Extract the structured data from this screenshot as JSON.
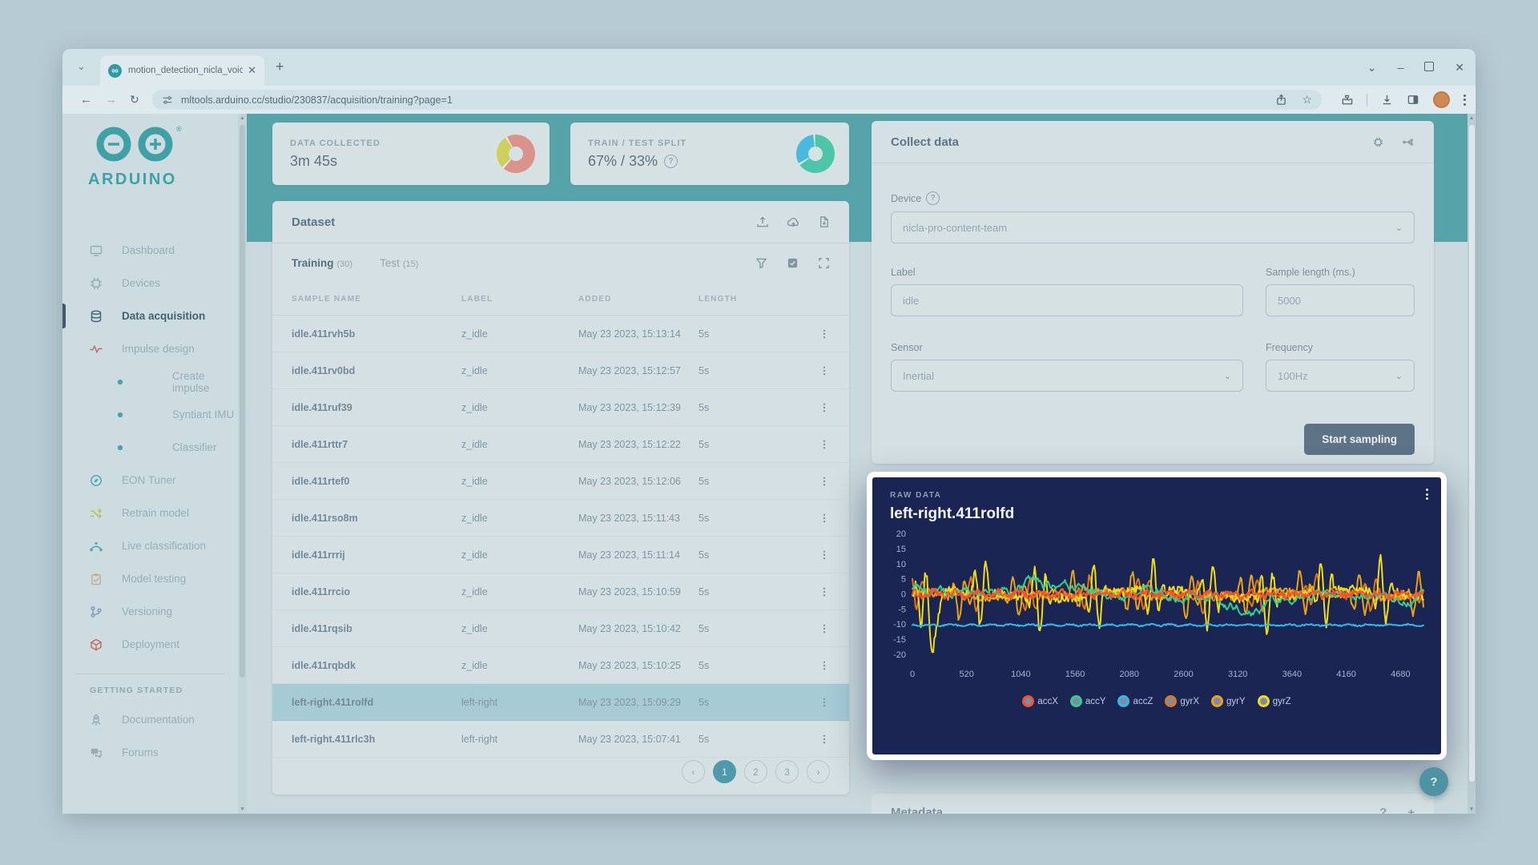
{
  "brand": {
    "teal": "#3fa0a6",
    "header_band": "#56a4aa",
    "spotlight_bg": "#1b2553"
  },
  "browser": {
    "tab_title": "motion_detection_nicla_voice - [",
    "url": "mltools.arduino.cc/studio/230837/acquisition/training?page=1",
    "new_tab_glyph": "+",
    "favicon_glyph": "∞"
  },
  "sidebar": {
    "logo_text": "ARDUINO",
    "items": [
      {
        "label": "Dashboard",
        "icon": "monitor",
        "color": "ic-gray"
      },
      {
        "label": "Devices",
        "icon": "chip",
        "color": "ic-gray"
      },
      {
        "label": "Data acquisition",
        "icon": "database",
        "color": "ic-dark",
        "active": true
      },
      {
        "label": "Impulse design",
        "icon": "pulse",
        "color": "ic-red"
      },
      {
        "label": "Create impulse",
        "icon": "dot",
        "color": "ic-teal",
        "indent": true
      },
      {
        "label": "Syntiant IMU",
        "icon": "dot",
        "color": "ic-teal",
        "indent": true
      },
      {
        "label": "Classifier",
        "icon": "dot",
        "color": "ic-teal",
        "indent": true
      },
      {
        "label": "EON Tuner",
        "icon": "compass",
        "color": "ic-teal"
      },
      {
        "label": "Retrain model",
        "icon": "shuffle",
        "color": "ic-olive"
      },
      {
        "label": "Live classification",
        "icon": "bezier",
        "color": "ic-teal"
      },
      {
        "label": "Model testing",
        "icon": "clipboard",
        "color": "ic-tan"
      },
      {
        "label": "Versioning",
        "icon": "branch",
        "color": "ic-steel"
      },
      {
        "label": "Deployment",
        "icon": "cube",
        "color": "ic-red"
      }
    ],
    "section_label": "GETTING STARTED",
    "secondary_items": [
      {
        "label": "Documentation",
        "icon": "rocket",
        "color": "ic-gray"
      },
      {
        "label": "Forums",
        "icon": "chat",
        "color": "ic-gray"
      }
    ]
  },
  "stats": {
    "cards": [
      {
        "label": "DATA COLLECTED",
        "value": "3m 45s",
        "has_help": false,
        "donut": {
          "from_deg": 225,
          "segments": [
            {
              "color": "#cdd05c",
              "pct": 30
            },
            {
              "color": "#d9938a",
              "pct": 70
            }
          ]
        }
      },
      {
        "label": "TRAIN / TEST SPLIT",
        "value": "67% / 33%",
        "has_help": true,
        "donut": {
          "from_deg": 240,
          "segments": [
            {
              "color": "#49b9dd",
              "pct": 33
            },
            {
              "color": "#4cc5a8",
              "pct": 67
            }
          ]
        }
      }
    ]
  },
  "dataset": {
    "title": "Dataset",
    "tabs": [
      {
        "label": "Training",
        "count": "(30)",
        "active": true
      },
      {
        "label": "Test",
        "count": "(15)",
        "active": false
      }
    ],
    "columns": [
      "SAMPLE NAME",
      "LABEL",
      "ADDED",
      "LENGTH"
    ],
    "rows": [
      {
        "name": "idle.411rvh5b",
        "label": "z_idle",
        "added": "May 23 2023, 15:13:14",
        "length": "5s"
      },
      {
        "name": "idle.411rv0bd",
        "label": "z_idle",
        "added": "May 23 2023, 15:12:57",
        "length": "5s"
      },
      {
        "name": "idle.411ruf39",
        "label": "z_idle",
        "added": "May 23 2023, 15:12:39",
        "length": "5s"
      },
      {
        "name": "idle.411rttr7",
        "label": "z_idle",
        "added": "May 23 2023, 15:12:22",
        "length": "5s"
      },
      {
        "name": "idle.411rtef0",
        "label": "z_idle",
        "added": "May 23 2023, 15:12:06",
        "length": "5s"
      },
      {
        "name": "idle.411rso8m",
        "label": "z_idle",
        "added": "May 23 2023, 15:11:43",
        "length": "5s"
      },
      {
        "name": "idle.411rrrij",
        "label": "z_idle",
        "added": "May 23 2023, 15:11:14",
        "length": "5s"
      },
      {
        "name": "idle.411rrcio",
        "label": "z_idle",
        "added": "May 23 2023, 15:10:59",
        "length": "5s"
      },
      {
        "name": "idle.411rqsib",
        "label": "z_idle",
        "added": "May 23 2023, 15:10:42",
        "length": "5s"
      },
      {
        "name": "idle.411rqbdk",
        "label": "z_idle",
        "added": "May 23 2023, 15:10:25",
        "length": "5s"
      },
      {
        "name": "left-right.411rolfd",
        "label": "left-right",
        "added": "May 23 2023, 15:09:29",
        "length": "5s",
        "selected": true
      },
      {
        "name": "left-right.411rlc3h",
        "label": "left-right",
        "added": "May 23 2023, 15:07:41",
        "length": "5s"
      }
    ],
    "pagination": {
      "prev": "‹",
      "pages": [
        "1",
        "2",
        "3"
      ],
      "current": "1",
      "next": "›"
    }
  },
  "collect": {
    "title": "Collect data",
    "device_label": "Device",
    "device_value": "nicla-pro-content-team",
    "label_label": "Label",
    "label_value": "idle",
    "sample_length_label": "Sample length (ms.)",
    "sample_length_value": "5000",
    "sensor_label": "Sensor",
    "sensor_value": "Inertial",
    "frequency_label": "Frequency",
    "frequency_value": "100Hz",
    "start_button": "Start sampling"
  },
  "raw": {
    "header": "RAW DATA",
    "title": "left-right.411rolfd"
  },
  "metadata": {
    "title": "Metadata",
    "help_glyph": "?",
    "add_glyph": "+"
  },
  "fab_help_glyph": "?",
  "chart_data": {
    "type": "line",
    "title": "left-right.411rolfd",
    "x_ticks": [
      0,
      520,
      1040,
      1560,
      2080,
      2600,
      3120,
      3640,
      4160,
      4680
    ],
    "x_max": 4900,
    "y_ticks": [
      20,
      15,
      10,
      5,
      0,
      -5,
      -10,
      -15,
      -20
    ],
    "y_range": [
      -21.5,
      21.5
    ],
    "samples": 490,
    "grid": false,
    "legend_position": "bottom",
    "series": [
      {
        "name": "accX",
        "color": "#f4512c",
        "baseline": 0,
        "amplitude": 1.8,
        "style": "tight"
      },
      {
        "name": "accY",
        "color": "#35cd8d",
        "baseline": -0.6,
        "amplitude": 3.0,
        "style": "wander"
      },
      {
        "name": "accZ",
        "color": "#30b9ea",
        "baseline": -10.2,
        "amplitude": 0.5,
        "style": "flat"
      },
      {
        "name": "gyrX",
        "color": "#e0761d",
        "baseline": 0,
        "amplitude": 6.0,
        "style": "burst",
        "phase": 1.2
      },
      {
        "name": "gyrY",
        "color": "#e8a418",
        "baseline": 0,
        "amplitude": 7.5,
        "style": "burst",
        "phase": 2.6
      },
      {
        "name": "gyrZ",
        "color": "#efdc16",
        "baseline": 0,
        "amplitude": 12.0,
        "style": "burst",
        "phase": 0.2
      }
    ],
    "draw_order": [
      "gyrX",
      "gyrY",
      "gyrZ",
      "accY",
      "accX",
      "accZ"
    ]
  }
}
